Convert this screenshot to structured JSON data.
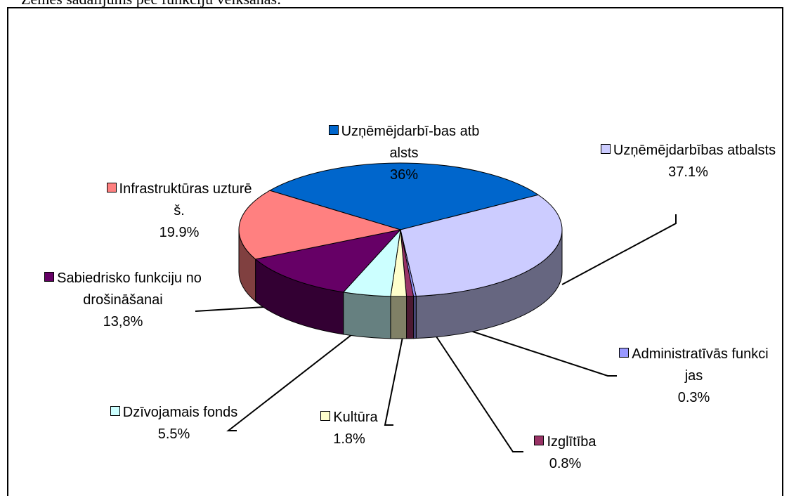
{
  "caption": "Zemes sadalījums pēc funkciju veikšanas:",
  "chart_data": {
    "type": "pie3d",
    "categories": [
      "Uzņēmējdarbī-bas atbalsts",
      "Uzņēmējdarbības atbalsts",
      "Administratīvās funkcijas",
      "Izglītība",
      "Kultūra",
      "Dzīvojamais fonds",
      "Sabiedrisko funkciju nodrošināšanai",
      "Infrastruktūras uzturēš."
    ],
    "values": [
      36,
      37.1,
      0.3,
      0.8,
      1.8,
      5.5,
      13.8,
      19.9
    ],
    "value_labels": [
      "36%",
      "37.1%",
      "0.3%",
      "0.8%",
      "1.8%",
      "5.5%",
      "13,8%",
      "19.9%"
    ],
    "colors": [
      "#0066cc",
      "#ccccff",
      "#9999ff",
      "#993366",
      "#ffffcc",
      "#ccffff",
      "#660066",
      "#ff8080"
    ]
  }
}
